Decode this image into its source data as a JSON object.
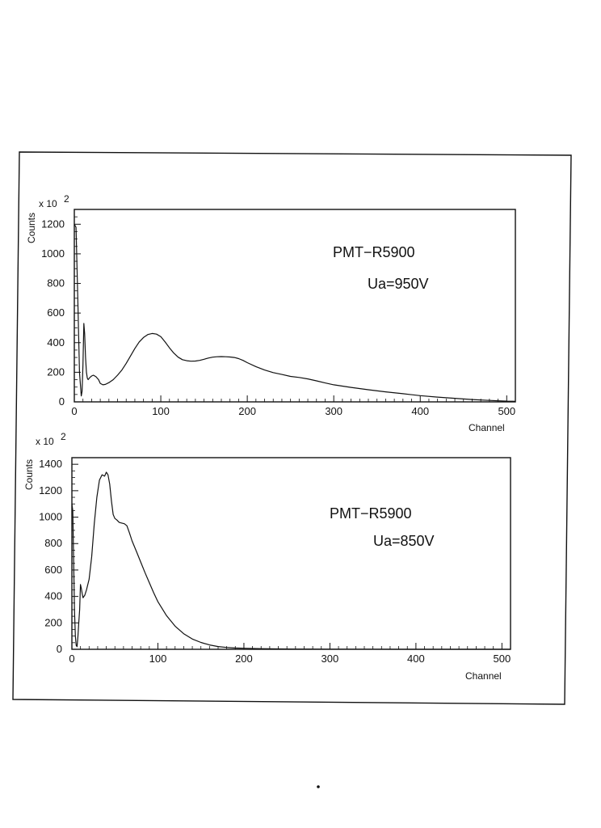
{
  "chart_data": [
    {
      "type": "line",
      "title": "",
      "annotation": [
        "PMT−R5900",
        "Ua=950V"
      ],
      "xlabel": "Channel",
      "ylabel": "Counts",
      "y_multiplier": "x 10",
      "y_multiplier_exp": "2",
      "xlim": [
        0,
        510
      ],
      "ylim": [
        0,
        1300
      ],
      "xticks": [
        0,
        100,
        200,
        300,
        400,
        500
      ],
      "yticks": [
        0,
        200,
        400,
        600,
        800,
        1000,
        1200
      ],
      "yticks_labels": [
        "0",
        "200",
        "400",
        "600",
        "800",
        "1000",
        "1200"
      ],
      "grid": false,
      "series": [
        {
          "x": [
            0,
            2,
            4,
            6,
            8,
            9,
            10,
            11,
            12,
            13,
            14,
            15,
            16,
            18,
            20,
            22,
            25,
            28,
            30,
            33,
            36,
            40,
            45,
            50,
            55,
            60,
            65,
            70,
            75,
            80,
            85,
            90,
            95,
            100,
            105,
            110,
            115,
            120,
            125,
            130,
            135,
            140,
            145,
            150,
            155,
            160,
            165,
            170,
            175,
            180,
            185,
            190,
            195,
            200,
            210,
            220,
            230,
            240,
            250,
            260,
            270,
            280,
            290,
            300,
            320,
            340,
            360,
            380,
            400,
            420,
            440,
            460,
            480,
            500,
            510
          ],
          "values": [
            1200,
            1180,
            700,
            200,
            40,
            70,
            250,
            530,
            460,
            300,
            200,
            160,
            150,
            165,
            175,
            180,
            170,
            150,
            125,
            115,
            118,
            130,
            150,
            180,
            215,
            260,
            310,
            360,
            405,
            435,
            455,
            462,
            458,
            440,
            405,
            365,
            330,
            302,
            285,
            278,
            275,
            276,
            280,
            288,
            296,
            302,
            305,
            306,
            305,
            303,
            300,
            292,
            280,
            265,
            238,
            215,
            198,
            185,
            172,
            165,
            155,
            142,
            128,
            115,
            98,
            82,
            68,
            55,
            42,
            32,
            24,
            16,
            10,
            5,
            4
          ]
        }
      ]
    },
    {
      "type": "line",
      "title": "",
      "annotation": [
        "PMT−R5900",
        "Ua=850V"
      ],
      "xlabel": "Channel",
      "ylabel": "Counts",
      "y_multiplier": "x 10",
      "y_multiplier_exp": "2",
      "xlim": [
        0,
        510
      ],
      "ylim": [
        0,
        1450
      ],
      "xticks": [
        0,
        100,
        200,
        300,
        400,
        500
      ],
      "yticks": [
        0,
        200,
        400,
        600,
        800,
        1000,
        1200,
        1400
      ],
      "yticks_labels": [
        "0",
        "200",
        "400",
        "600",
        "800",
        "1000",
        "1200",
        "1400"
      ],
      "grid": false,
      "series": [
        {
          "x": [
            0,
            1,
            2,
            3,
            4,
            5,
            6,
            7,
            8,
            9,
            10,
            11,
            12,
            13,
            14,
            15,
            17,
            20,
            23,
            26,
            29,
            32,
            35,
            38,
            40,
            42,
            44,
            46,
            48,
            50,
            52,
            55,
            58,
            61,
            64,
            67,
            70,
            75,
            80,
            85,
            90,
            95,
            100,
            110,
            120,
            130,
            140,
            150,
            160,
            170,
            180,
            190,
            200,
            220,
            240,
            260,
            300,
            400,
            510
          ],
          "values": [
            1100,
            1050,
            700,
            300,
            100,
            30,
            20,
            100,
            200,
            300,
            490,
            460,
            420,
            390,
            400,
            410,
            450,
            530,
            700,
            950,
            1150,
            1280,
            1320,
            1310,
            1340,
            1320,
            1250,
            1120,
            1020,
            990,
            980,
            960,
            955,
            950,
            935,
            880,
            820,
            740,
            660,
            580,
            505,
            430,
            360,
            255,
            175,
            118,
            78,
            52,
            33,
            21,
            14,
            10,
            8,
            5,
            3,
            2,
            1,
            0,
            0
          ]
        }
      ]
    }
  ]
}
